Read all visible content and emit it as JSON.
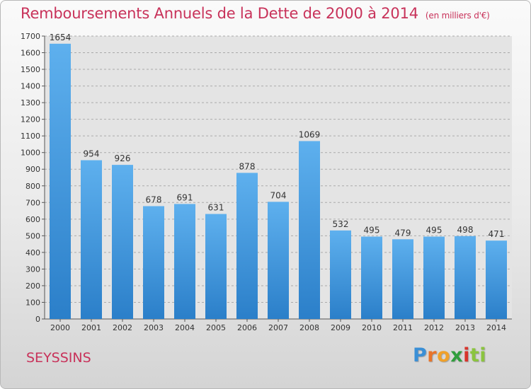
{
  "chart_data": {
    "type": "bar",
    "title": "Remboursements Annuels de la Dette de 2000 à 2014",
    "subtitle": "(en milliers d'€)",
    "categories": [
      "2000",
      "2001",
      "2002",
      "2003",
      "2004",
      "2005",
      "2006",
      "2007",
      "2008",
      "2009",
      "2010",
      "2011",
      "2012",
      "2013",
      "2014"
    ],
    "values": [
      1654,
      954,
      926,
      678,
      691,
      631,
      878,
      704,
      1069,
      532,
      495,
      479,
      495,
      498,
      471
    ],
    "ylim": [
      0,
      1700
    ],
    "yticks": [
      0,
      100,
      200,
      300,
      400,
      500,
      600,
      700,
      800,
      900,
      1000,
      1100,
      1200,
      1300,
      1400,
      1500,
      1600,
      1700
    ],
    "grid": true,
    "bar_color": "#4a9de0"
  },
  "footer": {
    "city": "SEYSSINS",
    "logo_letters": [
      "P",
      "r",
      "o",
      "x",
      "i",
      "ti"
    ]
  }
}
